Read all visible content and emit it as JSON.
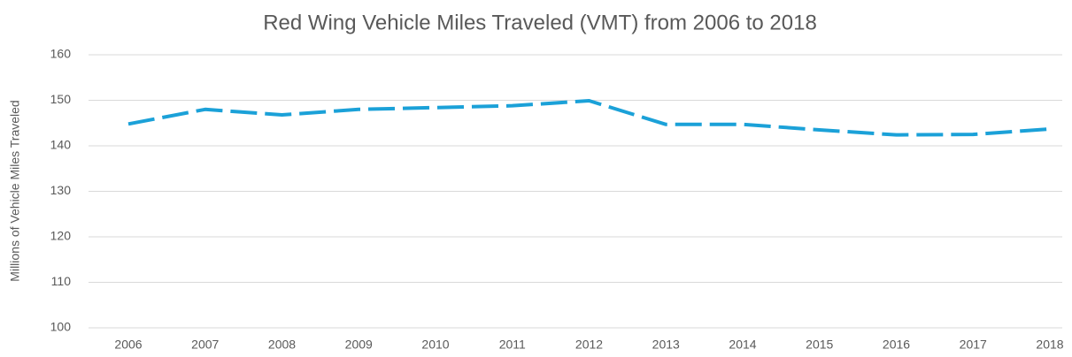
{
  "chart_data": {
    "type": "line",
    "title": "Red Wing Vehicle Miles Traveled (VMT) from 2006 to 2018",
    "y_label": "Millions of Vehicle Miles Traveled",
    "categories": [
      "2006",
      "2007",
      "2008",
      "2009",
      "2010",
      "2011",
      "2012",
      "2013",
      "2014",
      "2015",
      "2016",
      "2017",
      "2018"
    ],
    "series": [
      {
        "name": "VMT",
        "color": "#1ba1d8",
        "dashed": true,
        "values": [
          144.8,
          148,
          146.8,
          148,
          148.4,
          148.8,
          149.9,
          144.7,
          144.7,
          143.5,
          142.4,
          142.5,
          143.7
        ]
      }
    ],
    "ylim": [
      100,
      160
    ],
    "yticks": [
      100,
      110,
      120,
      130,
      140,
      150,
      160
    ],
    "grid": true
  }
}
